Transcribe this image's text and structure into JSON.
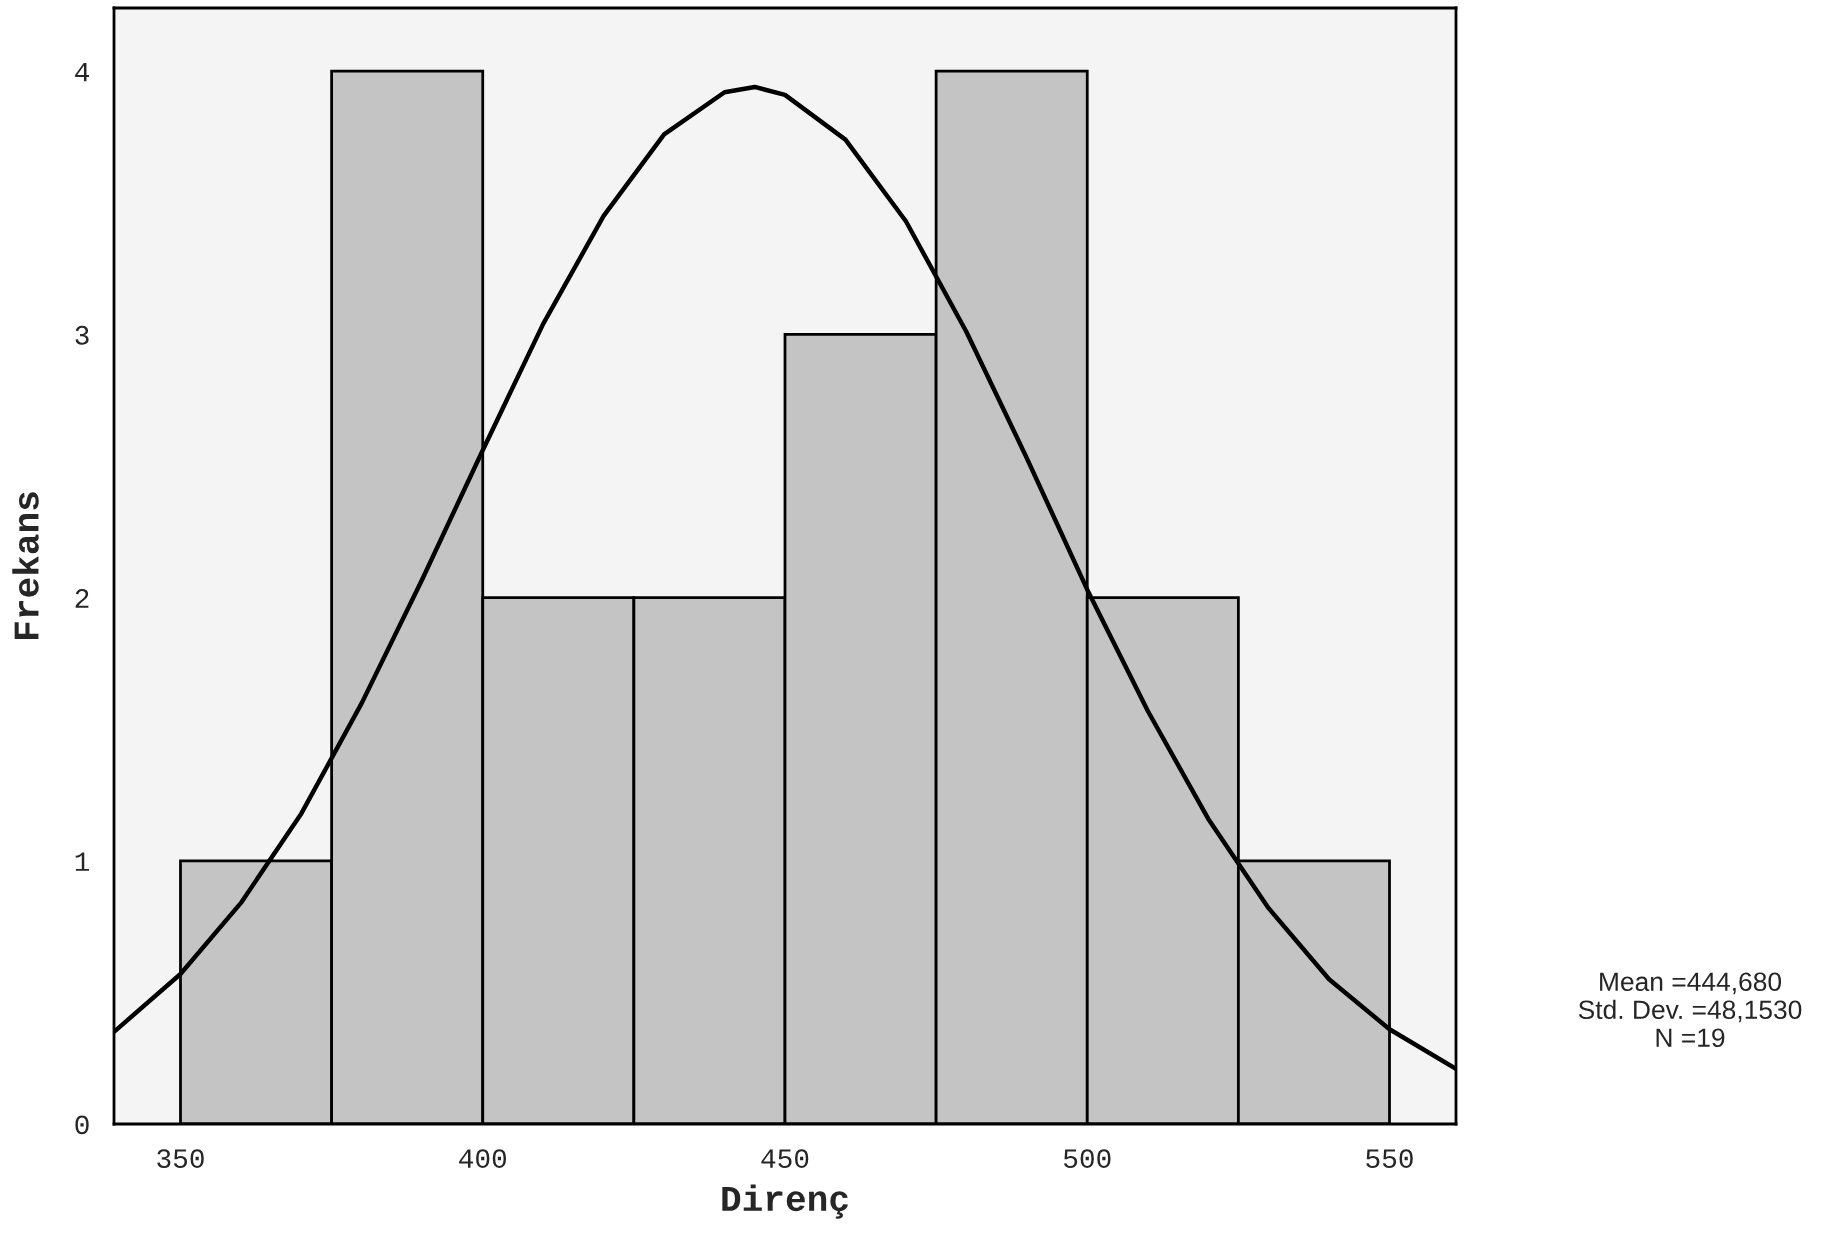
{
  "chart_data": {
    "type": "histogram",
    "xlabel": "Direnç",
    "ylabel": "Frekans",
    "bins": [
      350,
      375,
      400,
      425,
      450,
      475,
      500,
      525,
      550
    ],
    "values": [
      1,
      4,
      2,
      2,
      3,
      4,
      2,
      1
    ],
    "color": "#c4c4c4",
    "series": [
      {
        "type": "line",
        "color": "#000000",
        "x": [
          339,
          350,
          360,
          370,
          380,
          390,
          400,
          410,
          420,
          430,
          440,
          445,
          450,
          460,
          470,
          480,
          490,
          500,
          510,
          520,
          530,
          540,
          550,
          561
        ],
        "values": [
          0.35,
          0.57,
          0.84,
          1.18,
          1.6,
          2.07,
          2.56,
          3.04,
          3.45,
          3.76,
          3.92,
          3.94,
          3.91,
          3.74,
          3.43,
          3.01,
          2.53,
          2.03,
          1.57,
          1.16,
          0.82,
          0.55,
          0.36,
          0.21
        ]
      }
    ],
    "xlim": [
      339,
      561
    ],
    "ylim": [
      0,
      4.24
    ],
    "xticks": [
      350,
      400,
      450,
      500,
      550
    ],
    "yticks": [
      0,
      1,
      2,
      3,
      4
    ],
    "grid": false,
    "annotations": [
      "Mean =444,680",
      "Std. Dev. =48,1530",
      "N =19"
    ]
  }
}
